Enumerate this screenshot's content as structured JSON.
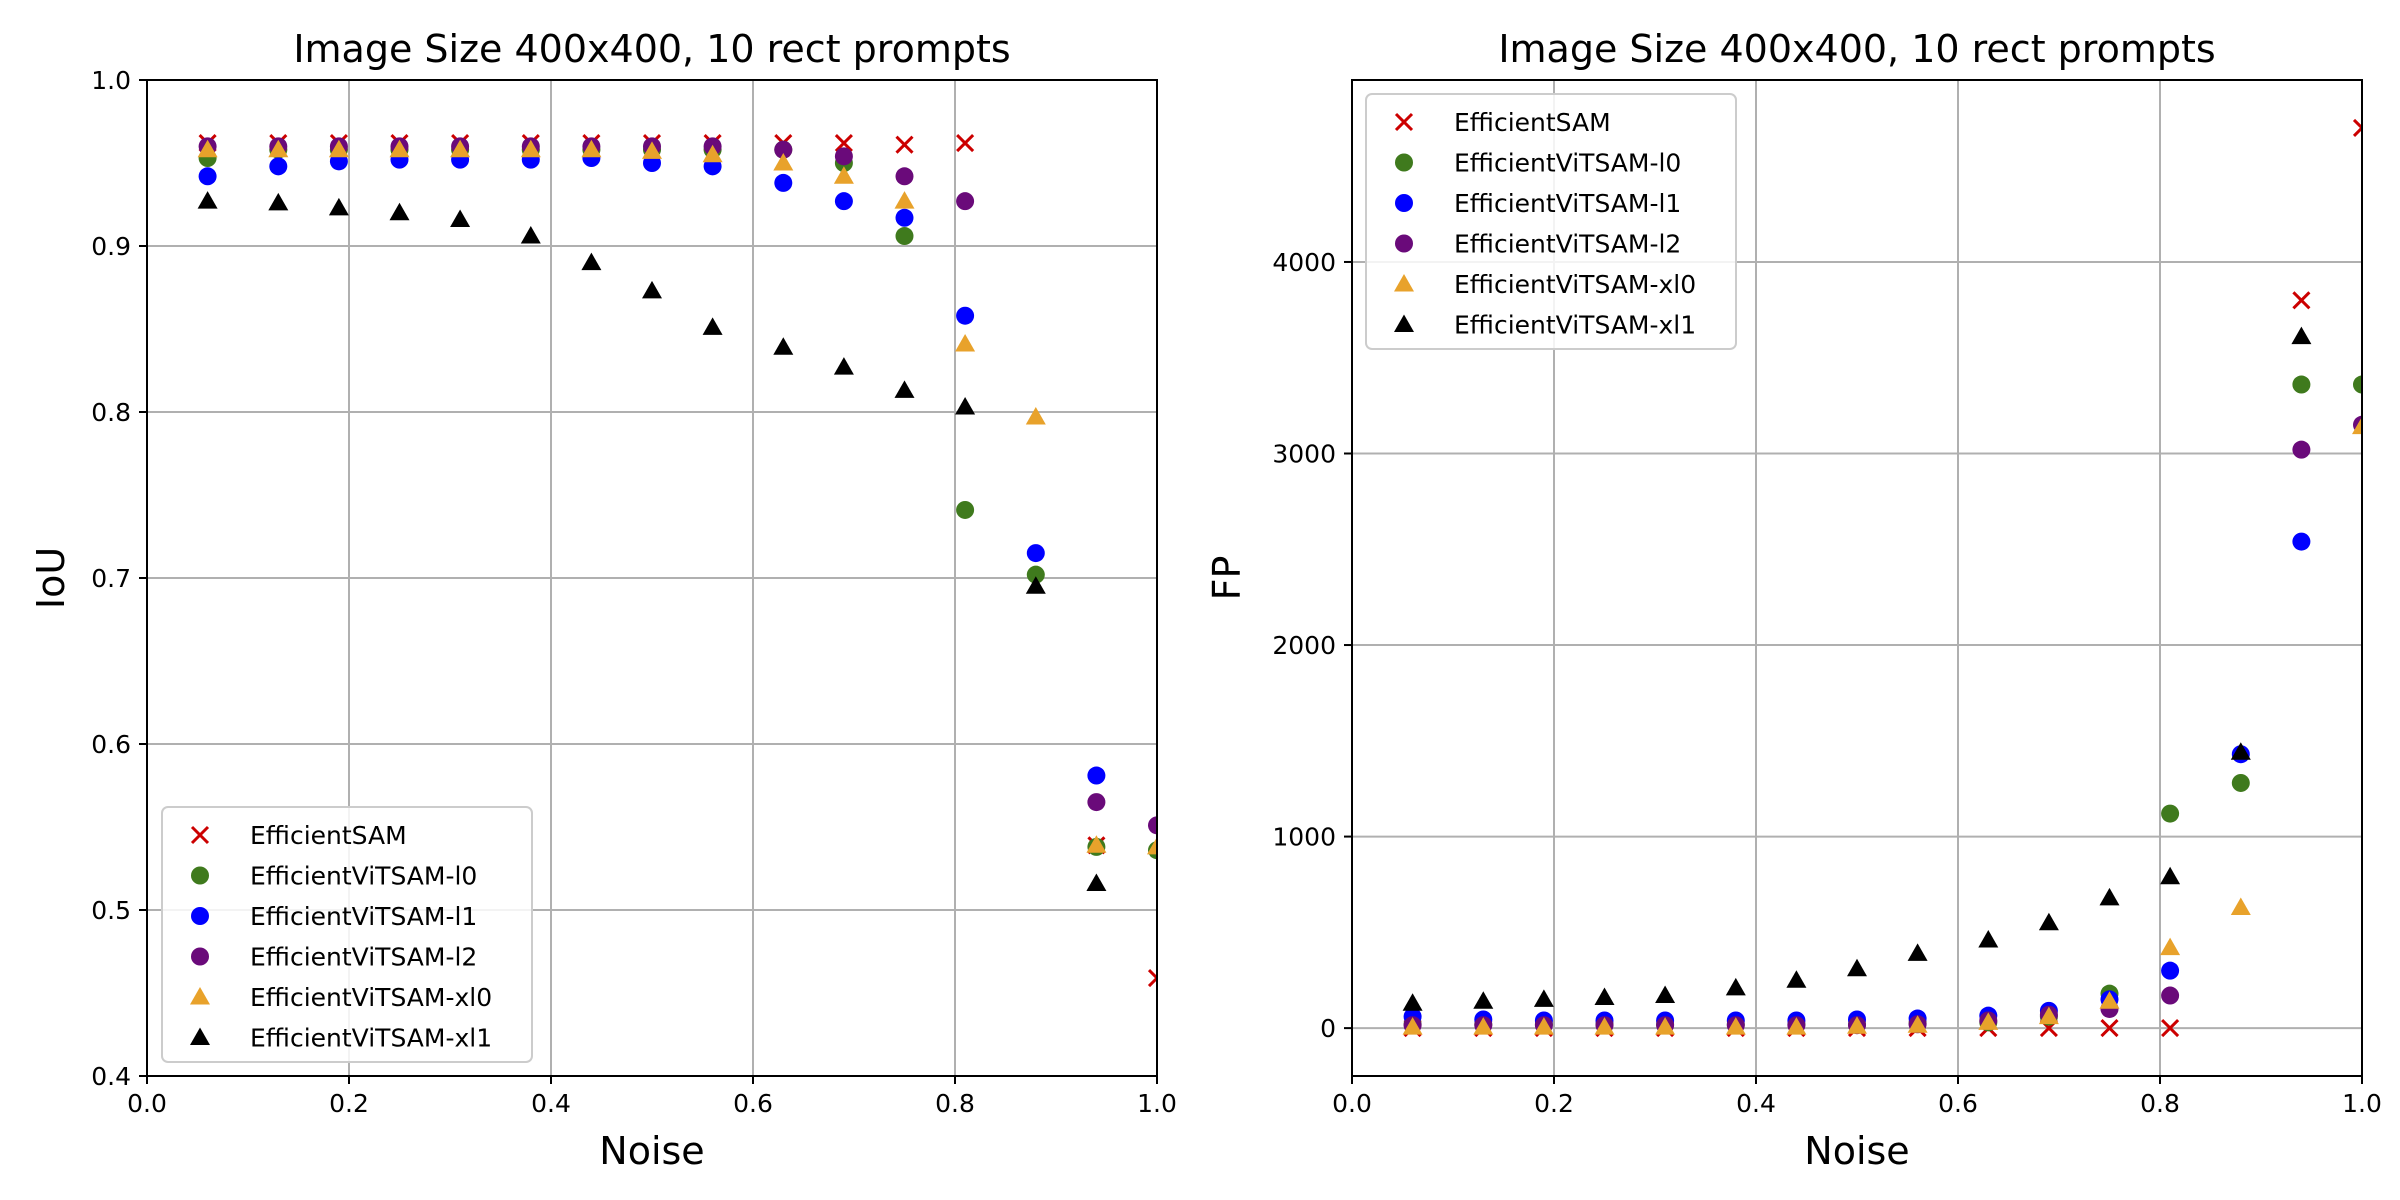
{
  "chart_data": [
    {
      "type": "scatter",
      "title": "Image Size 400x400, 10 rect prompts",
      "xlabel": "Noise",
      "ylabel": "IoU",
      "xlim": [
        0.0,
        1.0
      ],
      "ylim": [
        0.4,
        1.0
      ],
      "xticks": [
        0.0,
        0.2,
        0.4,
        0.6,
        0.8,
        1.0
      ],
      "yticks": [
        0.4,
        0.5,
        0.6,
        0.7,
        0.8,
        0.9,
        1.0
      ],
      "xtick_labels": [
        "0.0",
        "0.2",
        "0.4",
        "0.6",
        "0.8",
        "1.0"
      ],
      "ytick_labels": [
        "0.4",
        "0.5",
        "0.6",
        "0.7",
        "0.8",
        "0.9",
        "1.0"
      ],
      "grid": true,
      "legend_position": "lower-left",
      "series": [
        {
          "name": "EfficientSAM",
          "color": "#cc0000",
          "marker": "x",
          "x": [
            0.06,
            0.13,
            0.19,
            0.25,
            0.31,
            0.38,
            0.44,
            0.5,
            0.56,
            0.63,
            0.69,
            0.75,
            0.81,
            0.94,
            1.0
          ],
          "y": [
            0.962,
            0.962,
            0.962,
            0.962,
            0.962,
            0.962,
            0.962,
            0.962,
            0.962,
            0.962,
            0.962,
            0.961,
            0.962,
            0.539,
            0.459
          ]
        },
        {
          "name": "EfficientViTSAM-l0",
          "color": "#3f7a1d",
          "marker": "o",
          "x": [
            0.06,
            0.13,
            0.19,
            0.25,
            0.31,
            0.38,
            0.44,
            0.5,
            0.56,
            0.63,
            0.69,
            0.75,
            0.81,
            0.88,
            0.94,
            1.0
          ],
          "y": [
            0.953,
            0.958,
            0.958,
            0.958,
            0.958,
            0.958,
            0.958,
            0.958,
            0.958,
            0.958,
            0.95,
            0.906,
            0.741,
            0.702,
            0.538,
            0.536
          ]
        },
        {
          "name": "EfficientViTSAM-l1",
          "color": "#0000ff",
          "marker": "o",
          "x": [
            0.06,
            0.13,
            0.19,
            0.25,
            0.31,
            0.38,
            0.44,
            0.5,
            0.56,
            0.63,
            0.69,
            0.75,
            0.81,
            0.88,
            0.94
          ],
          "y": [
            0.942,
            0.948,
            0.951,
            0.952,
            0.952,
            0.952,
            0.953,
            0.95,
            0.948,
            0.938,
            0.927,
            0.917,
            0.858,
            0.715,
            0.581
          ]
        },
        {
          "name": "EfficientViTSAM-l2",
          "color": "#6a0a7a",
          "marker": "o",
          "x": [
            0.06,
            0.13,
            0.19,
            0.25,
            0.31,
            0.38,
            0.44,
            0.5,
            0.56,
            0.63,
            0.69,
            0.75,
            0.81,
            0.94,
            1.0
          ],
          "y": [
            0.96,
            0.96,
            0.96,
            0.96,
            0.96,
            0.96,
            0.96,
            0.96,
            0.96,
            0.958,
            0.954,
            0.942,
            0.927,
            0.565,
            0.551
          ]
        },
        {
          "name": "EfficientViTSAM-xl0",
          "color": "#e8a22b",
          "marker": "^",
          "x": [
            0.06,
            0.13,
            0.19,
            0.25,
            0.31,
            0.38,
            0.44,
            0.5,
            0.56,
            0.63,
            0.69,
            0.75,
            0.81,
            0.88,
            0.94,
            1.0
          ],
          "y": [
            0.958,
            0.958,
            0.958,
            0.958,
            0.958,
            0.958,
            0.958,
            0.957,
            0.955,
            0.95,
            0.942,
            0.927,
            0.841,
            0.797,
            0.539,
            0.538
          ]
        },
        {
          "name": "EfficientViTSAM-xl1",
          "color": "#000000",
          "marker": "^",
          "x": [
            0.06,
            0.13,
            0.19,
            0.25,
            0.31,
            0.38,
            0.44,
            0.5,
            0.56,
            0.63,
            0.69,
            0.75,
            0.81,
            0.88,
            0.94
          ],
          "y": [
            0.927,
            0.926,
            0.923,
            0.92,
            0.916,
            0.906,
            0.89,
            0.873,
            0.851,
            0.839,
            0.827,
            0.813,
            0.803,
            0.695,
            0.516
          ]
        }
      ]
    },
    {
      "type": "scatter",
      "title": "Image Size 400x400, 10 rect prompts",
      "xlabel": "Noise",
      "ylabel": "FP",
      "xlim": [
        0.0,
        1.0
      ],
      "ylim": [
        -250,
        4950
      ],
      "xticks": [
        0.0,
        0.2,
        0.4,
        0.6,
        0.8,
        1.0
      ],
      "yticks": [
        0,
        1000,
        2000,
        3000,
        4000
      ],
      "xtick_labels": [
        "0.0",
        "0.2",
        "0.4",
        "0.6",
        "0.8",
        "1.0"
      ],
      "ytick_labels": [
        "0",
        "1000",
        "2000",
        "3000",
        "4000"
      ],
      "grid": true,
      "legend_position": "upper-left",
      "series": [
        {
          "name": "EfficientSAM",
          "color": "#cc0000",
          "marker": "x",
          "x": [
            0.06,
            0.13,
            0.19,
            0.25,
            0.31,
            0.38,
            0.44,
            0.5,
            0.56,
            0.63,
            0.69,
            0.75,
            0.81,
            0.94,
            1.0
          ],
          "y": [
            0,
            0,
            0,
            0,
            0,
            0,
            0,
            0,
            0,
            0,
            0,
            0,
            0,
            3800,
            4700
          ]
        },
        {
          "name": "EfficientViTSAM-l0",
          "color": "#3f7a1d",
          "marker": "o",
          "x": [
            0.06,
            0.13,
            0.19,
            0.25,
            0.31,
            0.38,
            0.44,
            0.5,
            0.56,
            0.63,
            0.69,
            0.75,
            0.81,
            0.88,
            0.94,
            1.0
          ],
          "y": [
            20,
            20,
            20,
            20,
            20,
            20,
            20,
            20,
            25,
            30,
            60,
            180,
            1120,
            1280,
            3360,
            3360
          ]
        },
        {
          "name": "EfficientViTSAM-l1",
          "color": "#0000ff",
          "marker": "o",
          "x": [
            0.06,
            0.13,
            0.19,
            0.25,
            0.31,
            0.38,
            0.44,
            0.5,
            0.56,
            0.63,
            0.69,
            0.75,
            0.81,
            0.88,
            0.94
          ],
          "y": [
            60,
            45,
            40,
            40,
            40,
            40,
            40,
            45,
            50,
            65,
            90,
            150,
            300,
            1430,
            2540
          ]
        },
        {
          "name": "EfficientViTSAM-l2",
          "color": "#6a0a7a",
          "marker": "o",
          "x": [
            0.06,
            0.13,
            0.19,
            0.25,
            0.31,
            0.38,
            0.44,
            0.5,
            0.56,
            0.63,
            0.69,
            0.75,
            0.81,
            0.94,
            1.0
          ],
          "y": [
            15,
            15,
            15,
            15,
            15,
            15,
            15,
            15,
            20,
            40,
            70,
            100,
            170,
            3020,
            3150
          ]
        },
        {
          "name": "EfficientViTSAM-xl0",
          "color": "#e8a22b",
          "marker": "^",
          "x": [
            0.06,
            0.13,
            0.19,
            0.25,
            0.31,
            0.38,
            0.44,
            0.5,
            0.56,
            0.63,
            0.69,
            0.75,
            0.81,
            0.88,
            1.0
          ],
          "y": [
            5,
            5,
            5,
            5,
            5,
            5,
            5,
            10,
            15,
            30,
            60,
            140,
            420,
            630,
            3140
          ]
        },
        {
          "name": "EfficientViTSAM-xl1",
          "color": "#000000",
          "marker": "^",
          "x": [
            0.06,
            0.13,
            0.19,
            0.25,
            0.31,
            0.38,
            0.44,
            0.5,
            0.56,
            0.63,
            0.69,
            0.75,
            0.81,
            0.88,
            0.94
          ],
          "y": [
            130,
            140,
            150,
            160,
            170,
            210,
            250,
            310,
            390,
            460,
            550,
            680,
            790,
            1440,
            3610
          ]
        }
      ]
    }
  ]
}
